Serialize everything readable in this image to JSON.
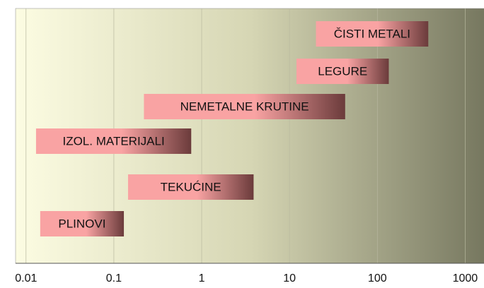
{
  "chart_data": {
    "type": "range_bar",
    "categories": [
      "ČISTI METALI",
      "LEGURE",
      "NEMETALNE KRUTINE",
      "IZOL. MATERIJALI",
      "TEKUĆINE",
      "PLINOVI"
    ],
    "low": [
      20,
      12,
      0.22,
      0.013,
      0.145,
      0.0145
    ],
    "high": [
      380,
      135,
      43,
      0.76,
      3.9,
      0.13
    ],
    "bar_color_start": "#f9a3a3",
    "bar_color_end": "#6b3b3b",
    "xscale": "log",
    "xlim": [
      0.0076,
      1700
    ],
    "xticks": [
      0.01,
      0.1,
      1,
      10,
      100,
      1000
    ],
    "grid": true
  }
}
